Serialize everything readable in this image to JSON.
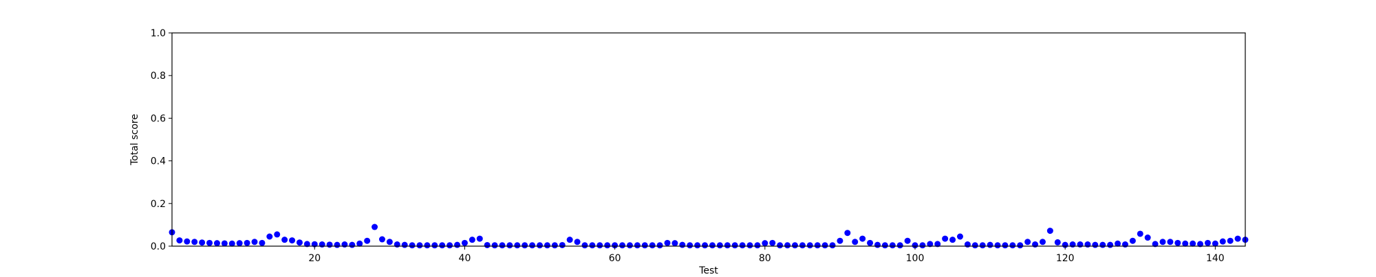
{
  "chart_data": {
    "type": "scatter",
    "title": "",
    "xlabel": "Test",
    "ylabel": "Total score",
    "xlim": [
      1,
      144
    ],
    "ylim": [
      0.0,
      1.0
    ],
    "grid": false,
    "x_ticks": [
      20,
      40,
      60,
      80,
      100,
      120,
      140
    ],
    "y_ticks": [
      0.0,
      0.2,
      0.4,
      0.6,
      0.8,
      1.0
    ],
    "x_tick_labels": [
      "20",
      "40",
      "60",
      "80",
      "100",
      "120",
      "140"
    ],
    "y_tick_labels": [
      "0.0",
      "0.2",
      "0.4",
      "0.6",
      "0.8",
      "1.0"
    ],
    "marker_color": "#0000ff",
    "series": [
      {
        "x": [
          1,
          2,
          3,
          4,
          5,
          6,
          7,
          8,
          9,
          10,
          11,
          12,
          13,
          14,
          15,
          16,
          17,
          18,
          19,
          20,
          21,
          22,
          23,
          24,
          25,
          26,
          27,
          28,
          29,
          30,
          31,
          32,
          33,
          34,
          35,
          36,
          37,
          38,
          39,
          40,
          41,
          42,
          43,
          44,
          45,
          46,
          47,
          48,
          49,
          50,
          51,
          52,
          53,
          54,
          55,
          56,
          57,
          58,
          59,
          60,
          61,
          62,
          63,
          64,
          65,
          66,
          67,
          68,
          69,
          70,
          71,
          72,
          73,
          74,
          75,
          76,
          77,
          78,
          79,
          80,
          81,
          82,
          83,
          84,
          85,
          86,
          87,
          88,
          89,
          90,
          91,
          92,
          93,
          94,
          95,
          96,
          97,
          98,
          99,
          100,
          101,
          102,
          103,
          104,
          105,
          106,
          107,
          108,
          109,
          110,
          111,
          112,
          113,
          114,
          115,
          116,
          117,
          118,
          119,
          120,
          121,
          122,
          123,
          124,
          125,
          126,
          127,
          128,
          129,
          130,
          131,
          132,
          133,
          134,
          135,
          136,
          137,
          138,
          139,
          140,
          141,
          142,
          143,
          144
        ],
        "y": [
          0.065,
          0.027,
          0.022,
          0.02,
          0.017,
          0.015,
          0.014,
          0.013,
          0.012,
          0.014,
          0.015,
          0.02,
          0.015,
          0.045,
          0.055,
          0.03,
          0.027,
          0.017,
          0.01,
          0.009,
          0.008,
          0.007,
          0.006,
          0.008,
          0.006,
          0.012,
          0.025,
          0.09,
          0.032,
          0.02,
          0.008,
          0.006,
          0.004,
          0.004,
          0.004,
          0.004,
          0.004,
          0.004,
          0.006,
          0.015,
          0.03,
          0.035,
          0.005,
          0.004,
          0.004,
          0.004,
          0.004,
          0.004,
          0.004,
          0.004,
          0.004,
          0.004,
          0.005,
          0.03,
          0.02,
          0.004,
          0.004,
          0.004,
          0.004,
          0.004,
          0.004,
          0.004,
          0.004,
          0.004,
          0.004,
          0.004,
          0.015,
          0.014,
          0.006,
          0.004,
          0.004,
          0.004,
          0.004,
          0.004,
          0.004,
          0.004,
          0.004,
          0.004,
          0.004,
          0.014,
          0.015,
          0.004,
          0.004,
          0.004,
          0.004,
          0.004,
          0.004,
          0.004,
          0.004,
          0.025,
          0.062,
          0.02,
          0.035,
          0.015,
          0.006,
          0.004,
          0.004,
          0.004,
          0.025,
          0.004,
          0.004,
          0.01,
          0.01,
          0.035,
          0.03,
          0.045,
          0.008,
          0.004,
          0.004,
          0.006,
          0.004,
          0.004,
          0.004,
          0.004,
          0.02,
          0.008,
          0.02,
          0.072,
          0.018,
          0.006,
          0.008,
          0.008,
          0.008,
          0.006,
          0.006,
          0.006,
          0.012,
          0.008,
          0.025,
          0.058,
          0.04,
          0.01,
          0.02,
          0.02,
          0.015,
          0.012,
          0.012,
          0.01,
          0.015,
          0.012,
          0.022,
          0.025,
          0.035,
          0.03
        ]
      }
    ]
  }
}
